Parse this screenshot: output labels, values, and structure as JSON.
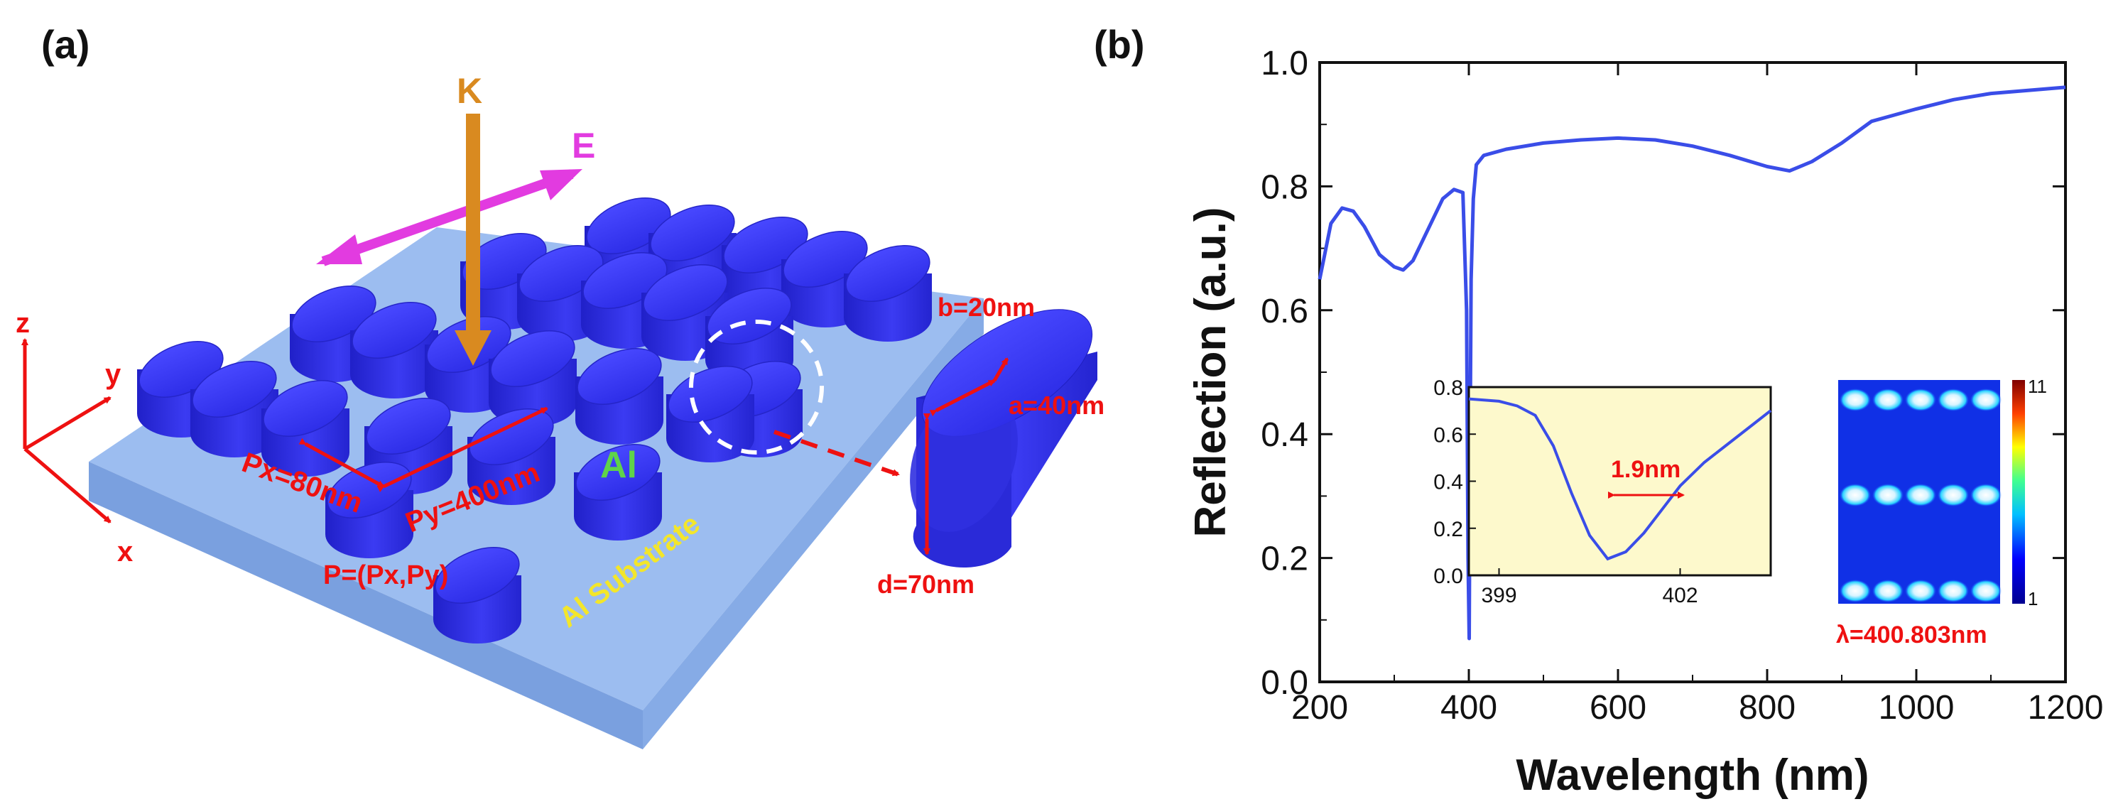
{
  "panel_a": {
    "label": "(a)",
    "k_label": "K",
    "e_label": "E",
    "axis_z": "z",
    "axis_y": "y",
    "axis_x": "x",
    "px_label": "Px=80nm",
    "py_label": "Py=400nm",
    "p_label": "P=(Px,Py)",
    "al_label": "Al",
    "substrate_label": "Al Substrate",
    "b_label": "b=20nm",
    "a_label": "a=40nm",
    "d_label": "d=70nm",
    "colors": {
      "pillar": "#3333ee",
      "substrate": "#8fb6ec",
      "annot": "#ee1111",
      "k_arrow": "#d98a20",
      "e_arrow": "#e23be0",
      "al_text": "#5fd34a",
      "sub_text": "#f3e62a"
    }
  },
  "panel_b": {
    "label": "(b)",
    "inset_fwhm": "1.9nm",
    "inset_xticks": [
      "399",
      "402"
    ],
    "inset_yticks": [
      "0.0",
      "0.2",
      "0.4",
      "0.6",
      "0.8"
    ],
    "field_colorbar_max": "11",
    "field_colorbar_min": "1",
    "field_lambda": "λ=400.803nm"
  },
  "chart_data": {
    "type": "line",
    "title": "",
    "xlabel": "Wavelength (nm)",
    "ylabel": "Reflection (a.u.)",
    "xlim": [
      200,
      1200
    ],
    "ylim": [
      0.0,
      1.0
    ],
    "xticks": [
      200,
      400,
      600,
      800,
      1000,
      1200
    ],
    "yticks": [
      0.0,
      0.2,
      0.4,
      0.6,
      0.8,
      1.0
    ],
    "xtick_labels": [
      "200",
      "400",
      "600",
      "800",
      "1000",
      "1200"
    ],
    "ytick_labels": [
      "0.0",
      "0.2",
      "0.4",
      "0.6",
      "0.8",
      "1.0"
    ],
    "series": [
      {
        "name": "reflection",
        "color": "#3a4de8",
        "x": [
          200,
          205,
          215,
          230,
          245,
          260,
          280,
          300,
          312,
          325,
          345,
          365,
          380,
          392,
          397,
          399,
          400.5,
          401.5,
          403,
          406,
          410,
          420,
          450,
          500,
          550,
          600,
          650,
          700,
          750,
          800,
          830,
          860,
          900,
          940,
          1000,
          1050,
          1100,
          1150,
          1200
        ],
        "y": [
          0.65,
          0.68,
          0.74,
          0.765,
          0.76,
          0.735,
          0.69,
          0.67,
          0.665,
          0.68,
          0.73,
          0.78,
          0.795,
          0.79,
          0.6,
          0.2,
          0.07,
          0.35,
          0.65,
          0.78,
          0.835,
          0.85,
          0.86,
          0.87,
          0.875,
          0.878,
          0.875,
          0.865,
          0.85,
          0.832,
          0.825,
          0.84,
          0.87,
          0.905,
          0.925,
          0.94,
          0.95,
          0.955,
          0.96
        ]
      }
    ],
    "inset": {
      "xlim": [
        398.5,
        403.5
      ],
      "ylim": [
        0.0,
        0.8
      ],
      "x": [
        398.5,
        399,
        399.3,
        399.6,
        399.9,
        400.2,
        400.5,
        400.8,
        401.1,
        401.4,
        401.7,
        402.0,
        402.4,
        402.8,
        403.2,
        403.5
      ],
      "y": [
        0.75,
        0.74,
        0.72,
        0.68,
        0.55,
        0.35,
        0.17,
        0.07,
        0.1,
        0.18,
        0.28,
        0.38,
        0.48,
        0.56,
        0.64,
        0.7
      ]
    }
  }
}
